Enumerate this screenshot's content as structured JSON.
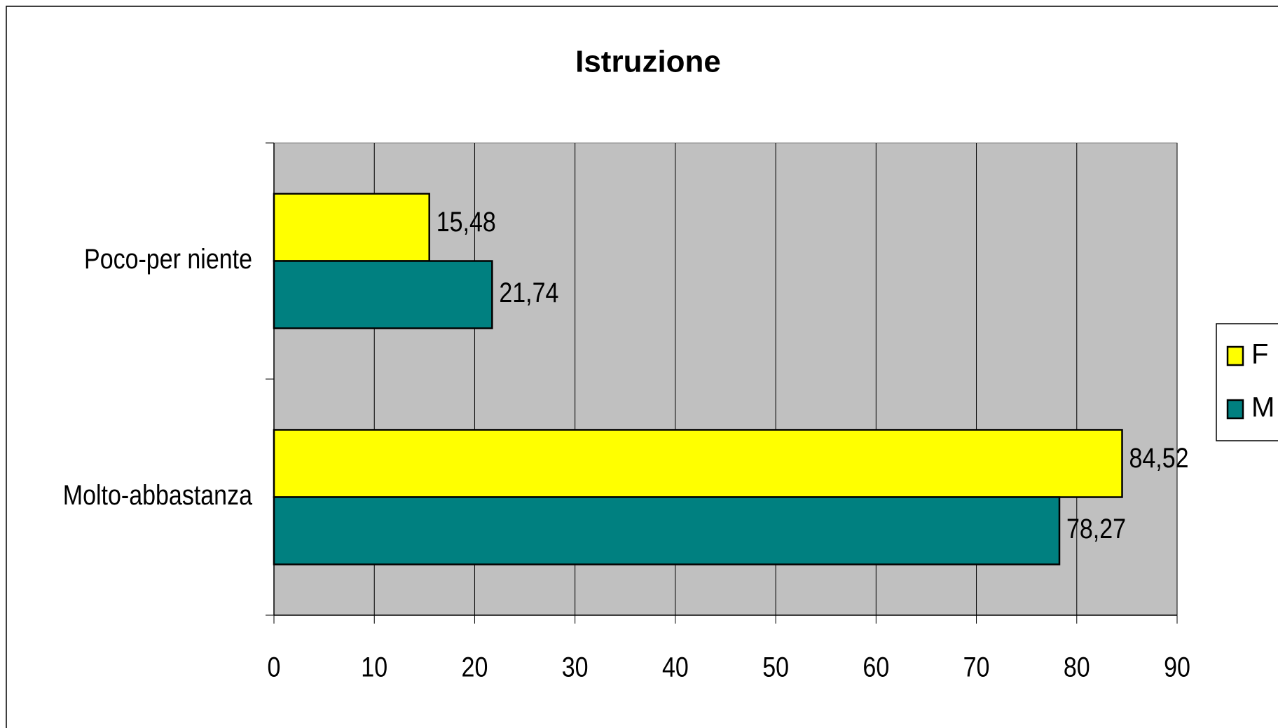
{
  "chart_data": {
    "type": "hbar",
    "title": "Istruzione",
    "categories": [
      "Poco-per niente",
      "Molto-abbastanza"
    ],
    "series": [
      {
        "name": "F",
        "color": "#ffff00",
        "values": [
          15.48,
          84.52
        ],
        "value_labels": [
          "15,48",
          "84,52"
        ]
      },
      {
        "name": "M",
        "color": "#008080",
        "values": [
          21.74,
          78.27
        ],
        "value_labels": [
          "21,74",
          "78,27"
        ]
      }
    ],
    "xlim": [
      0,
      90
    ],
    "xticks": [
      0,
      10,
      20,
      30,
      40,
      50,
      60,
      70,
      80,
      90
    ],
    "grid": true,
    "legend": "right"
  }
}
